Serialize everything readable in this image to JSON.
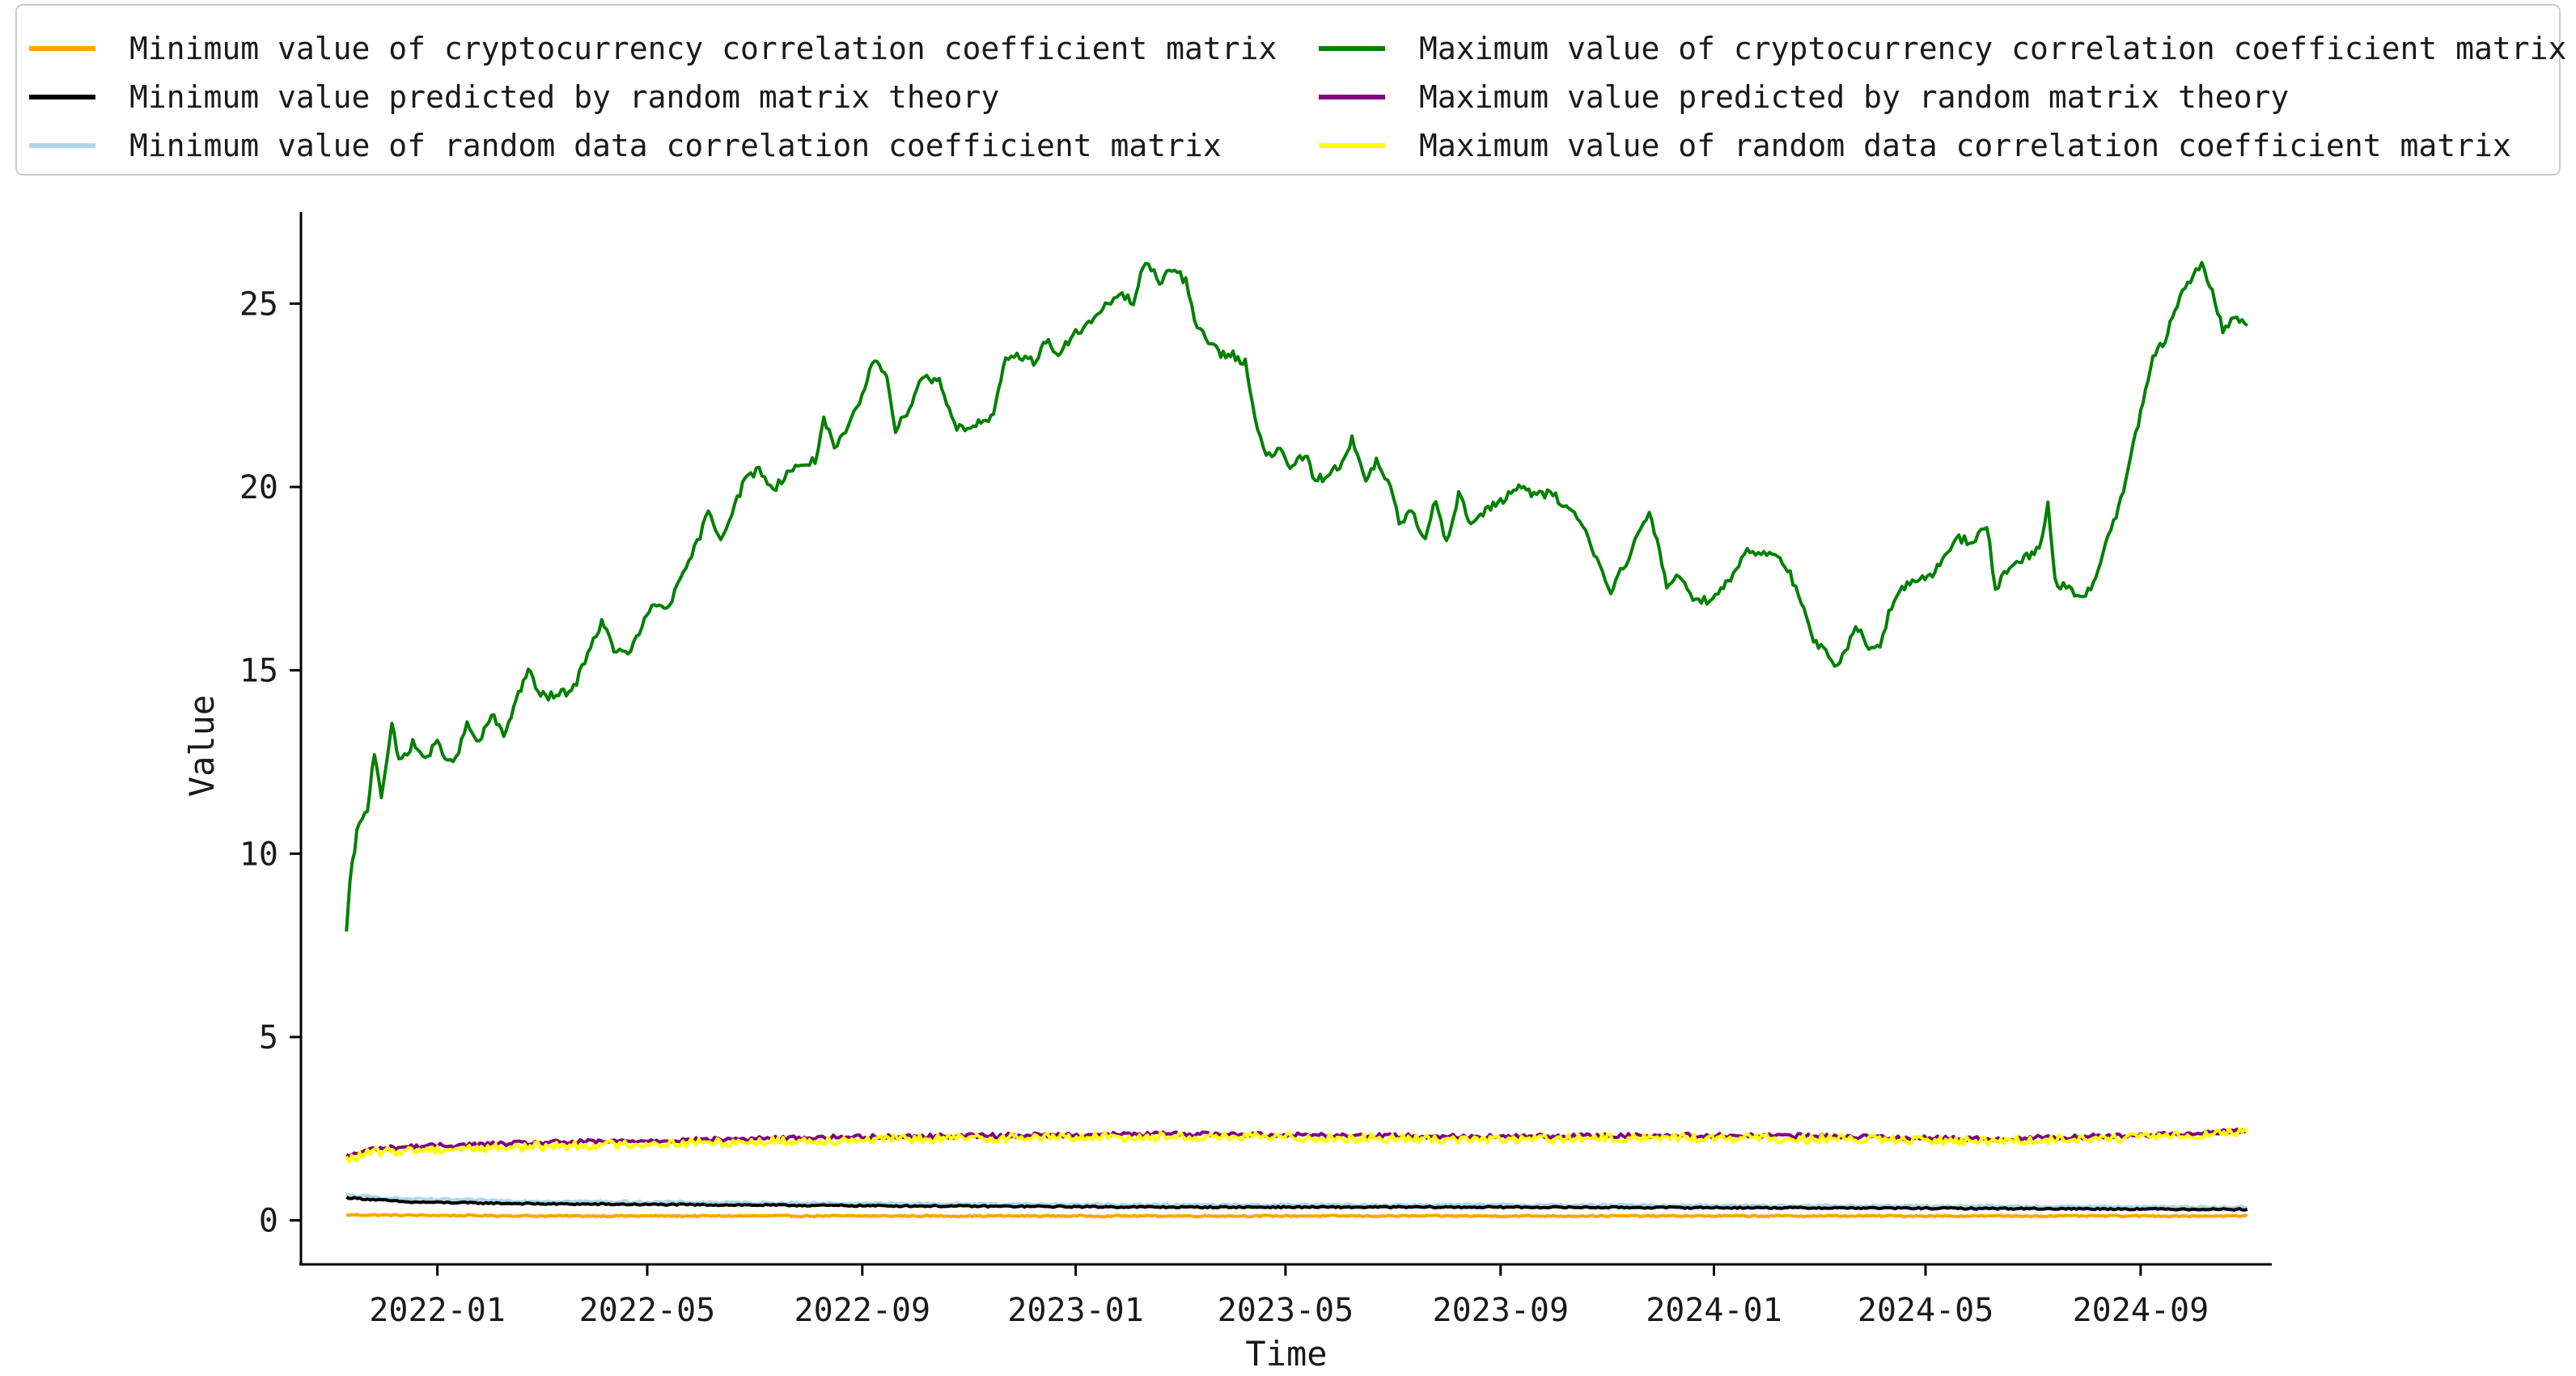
{
  "chart_data": {
    "type": "line",
    "xlabel": "Time",
    "ylabel": "Value",
    "x_range": [
      "2021-10-15",
      "2024-11-15"
    ],
    "ylim": [
      -1.2,
      27.5
    ],
    "x_ticks": [
      "2022-01",
      "2022-05",
      "2022-09",
      "2023-01",
      "2023-05",
      "2023-09",
      "2024-01",
      "2024-05",
      "2024-09"
    ],
    "y_ticks": [
      0,
      5,
      10,
      15,
      20,
      25
    ],
    "grid": false,
    "legend_position": "top",
    "legend_columns": 2,
    "series": [
      {
        "name": "Minimum value of cryptocurrency correlation coefficient matrix",
        "color": "#ffa500",
        "points": [
          [
            "2021-11-10",
            0.15
          ],
          [
            "2022-03-01",
            0.12
          ],
          [
            "2022-09-01",
            0.12
          ],
          [
            "2023-03-01",
            0.12
          ],
          [
            "2023-09-01",
            0.12
          ],
          [
            "2024-03-01",
            0.12
          ],
          [
            "2024-11-01",
            0.12
          ]
        ]
      },
      {
        "name": "Minimum value predicted by random matrix theory",
        "color": "#000000",
        "points": [
          [
            "2021-11-10",
            0.62
          ],
          [
            "2021-12-15",
            0.5
          ],
          [
            "2022-03-01",
            0.45
          ],
          [
            "2022-09-01",
            0.4
          ],
          [
            "2023-03-01",
            0.36
          ],
          [
            "2023-09-01",
            0.36
          ],
          [
            "2024-03-01",
            0.34
          ],
          [
            "2024-11-01",
            0.3
          ]
        ]
      },
      {
        "name": "Minimum value of random data correlation coefficient matrix",
        "color": "#add8e6",
        "points": [
          [
            "2021-11-10",
            0.68
          ],
          [
            "2021-12-15",
            0.58
          ],
          [
            "2022-03-01",
            0.52
          ],
          [
            "2022-09-01",
            0.46
          ],
          [
            "2023-03-01",
            0.42
          ],
          [
            "2023-09-01",
            0.42
          ],
          [
            "2024-03-01",
            0.4
          ],
          [
            "2024-11-01",
            0.36
          ]
        ]
      },
      {
        "name": "Maximum value of cryptocurrency correlation coefficient matrix",
        "color": "#008000",
        "points": [
          [
            "2021-11-10",
            7.8
          ],
          [
            "2021-11-12",
            9.2
          ],
          [
            "2021-11-16",
            10.6
          ],
          [
            "2021-11-22",
            11.2
          ],
          [
            "2021-11-26",
            12.8
          ],
          [
            "2021-11-30",
            11.6
          ],
          [
            "2021-12-06",
            13.5
          ],
          [
            "2021-12-10",
            12.5
          ],
          [
            "2021-12-18",
            13.0
          ],
          [
            "2021-12-25",
            12.6
          ],
          [
            "2022-01-01",
            13.0
          ],
          [
            "2022-01-10",
            12.4
          ],
          [
            "2022-01-18",
            13.5
          ],
          [
            "2022-01-25",
            13.0
          ],
          [
            "2022-02-01",
            13.8
          ],
          [
            "2022-02-08",
            13.2
          ],
          [
            "2022-02-15",
            14.2
          ],
          [
            "2022-02-22",
            15.0
          ],
          [
            "2022-03-01",
            14.3
          ],
          [
            "2022-03-10",
            14.3
          ],
          [
            "2022-03-20",
            14.5
          ],
          [
            "2022-03-28",
            15.5
          ],
          [
            "2022-04-05",
            16.3
          ],
          [
            "2022-04-12",
            15.6
          ],
          [
            "2022-04-20",
            15.4
          ],
          [
            "2022-04-28",
            16.2
          ],
          [
            "2022-05-05",
            16.8
          ],
          [
            "2022-05-12",
            16.7
          ],
          [
            "2022-05-20",
            17.4
          ],
          [
            "2022-05-28",
            18.3
          ],
          [
            "2022-06-05",
            19.3
          ],
          [
            "2022-06-12",
            18.6
          ],
          [
            "2022-06-20",
            19.5
          ],
          [
            "2022-06-26",
            20.2
          ],
          [
            "2022-07-04",
            20.5
          ],
          [
            "2022-07-12",
            19.9
          ],
          [
            "2022-07-20",
            20.4
          ],
          [
            "2022-07-28",
            20.6
          ],
          [
            "2022-08-05",
            20.7
          ],
          [
            "2022-08-10",
            21.9
          ],
          [
            "2022-08-16",
            21.0
          ],
          [
            "2022-08-24",
            21.6
          ],
          [
            "2022-09-01",
            22.5
          ],
          [
            "2022-09-08",
            23.5
          ],
          [
            "2022-09-15",
            23.1
          ],
          [
            "2022-09-20",
            21.5
          ],
          [
            "2022-09-28",
            22.2
          ],
          [
            "2022-10-05",
            23.0
          ],
          [
            "2022-10-15",
            22.9
          ],
          [
            "2022-10-25",
            21.6
          ],
          [
            "2022-11-05",
            21.7
          ],
          [
            "2022-11-15",
            21.9
          ],
          [
            "2022-11-22",
            23.5
          ],
          [
            "2022-11-30",
            23.6
          ],
          [
            "2022-12-08",
            23.4
          ],
          [
            "2022-12-15",
            24.0
          ],
          [
            "2022-12-22",
            23.6
          ],
          [
            "2023-01-01",
            24.2
          ],
          [
            "2023-01-10",
            24.5
          ],
          [
            "2023-01-18",
            24.9
          ],
          [
            "2023-01-26",
            25.3
          ],
          [
            "2023-02-03",
            25.0
          ],
          [
            "2023-02-10",
            26.2
          ],
          [
            "2023-02-18",
            25.6
          ],
          [
            "2023-02-25",
            26.0
          ],
          [
            "2023-03-05",
            25.6
          ],
          [
            "2023-03-10",
            24.5
          ],
          [
            "2023-03-18",
            24.0
          ],
          [
            "2023-03-25",
            23.6
          ],
          [
            "2023-04-01",
            23.6
          ],
          [
            "2023-04-08",
            23.4
          ],
          [
            "2023-04-15",
            21.6
          ],
          [
            "2023-04-20",
            20.8
          ],
          [
            "2023-04-28",
            21.0
          ],
          [
            "2023-05-05",
            20.5
          ],
          [
            "2023-05-12",
            20.9
          ],
          [
            "2023-05-18",
            20.2
          ],
          [
            "2023-05-25",
            20.3
          ],
          [
            "2023-06-01",
            20.6
          ],
          [
            "2023-06-08",
            21.3
          ],
          [
            "2023-06-16",
            20.1
          ],
          [
            "2023-06-22",
            20.7
          ],
          [
            "2023-06-30",
            20.0
          ],
          [
            "2023-07-05",
            19.0
          ],
          [
            "2023-07-12",
            19.3
          ],
          [
            "2023-07-20",
            18.6
          ],
          [
            "2023-07-26",
            19.7
          ],
          [
            "2023-08-01",
            18.5
          ],
          [
            "2023-08-08",
            19.8
          ],
          [
            "2023-08-15",
            19.0
          ],
          [
            "2023-08-22",
            19.3
          ],
          [
            "2023-09-01",
            19.6
          ],
          [
            "2023-09-10",
            20.0
          ],
          [
            "2023-09-20",
            19.8
          ],
          [
            "2023-10-01",
            19.8
          ],
          [
            "2023-10-10",
            19.4
          ],
          [
            "2023-10-18",
            19.0
          ],
          [
            "2023-10-26",
            18.0
          ],
          [
            "2023-11-03",
            17.2
          ],
          [
            "2023-11-10",
            17.8
          ],
          [
            "2023-11-15",
            18.3
          ],
          [
            "2023-11-20",
            18.8
          ],
          [
            "2023-11-25",
            19.3
          ],
          [
            "2023-12-01",
            18.2
          ],
          [
            "2023-12-05",
            17.3
          ],
          [
            "2023-12-12",
            17.6
          ],
          [
            "2023-12-20",
            17.0
          ],
          [
            "2023-12-28",
            16.9
          ],
          [
            "2024-01-05",
            17.2
          ],
          [
            "2024-01-12",
            17.6
          ],
          [
            "2024-01-20",
            18.3
          ],
          [
            "2024-01-28",
            18.2
          ],
          [
            "2024-02-05",
            18.2
          ],
          [
            "2024-02-12",
            17.8
          ],
          [
            "2024-02-20",
            16.8
          ],
          [
            "2024-02-27",
            15.8
          ],
          [
            "2024-03-05",
            15.5
          ],
          [
            "2024-03-10",
            15.0
          ],
          [
            "2024-03-16",
            15.5
          ],
          [
            "2024-03-22",
            16.3
          ],
          [
            "2024-03-28",
            15.7
          ],
          [
            "2024-04-05",
            15.6
          ],
          [
            "2024-04-10",
            16.6
          ],
          [
            "2024-04-16",
            17.2
          ],
          [
            "2024-04-25",
            17.4
          ],
          [
            "2024-05-05",
            17.6
          ],
          [
            "2024-05-12",
            18.2
          ],
          [
            "2024-05-20",
            18.6
          ],
          [
            "2024-05-28",
            18.5
          ],
          [
            "2024-06-05",
            19.0
          ],
          [
            "2024-06-10",
            17.2
          ],
          [
            "2024-06-15",
            17.6
          ],
          [
            "2024-06-25",
            18.0
          ],
          [
            "2024-07-05",
            18.3
          ],
          [
            "2024-07-10",
            19.5
          ],
          [
            "2024-07-14",
            17.4
          ],
          [
            "2024-07-22",
            17.2
          ],
          [
            "2024-07-30",
            17.0
          ],
          [
            "2024-08-05",
            17.3
          ],
          [
            "2024-08-12",
            18.5
          ],
          [
            "2024-08-18",
            19.2
          ],
          [
            "2024-08-25",
            20.5
          ],
          [
            "2024-09-01",
            22.0
          ],
          [
            "2024-09-08",
            23.5
          ],
          [
            "2024-09-15",
            24.0
          ],
          [
            "2024-09-22",
            25.0
          ],
          [
            "2024-10-01",
            25.8
          ],
          [
            "2024-10-06",
            26.1
          ],
          [
            "2024-10-12",
            25.3
          ],
          [
            "2024-10-18",
            24.3
          ],
          [
            "2024-10-26",
            24.6
          ],
          [
            "2024-11-01",
            24.4
          ]
        ]
      },
      {
        "name": "Maximum value predicted by random matrix theory",
        "color": "#800080",
        "points": [
          [
            "2021-11-10",
            1.75
          ],
          [
            "2021-11-25",
            1.95
          ],
          [
            "2021-12-20",
            2.02
          ],
          [
            "2022-03-01",
            2.12
          ],
          [
            "2022-06-01",
            2.2
          ],
          [
            "2022-09-01",
            2.28
          ],
          [
            "2022-12-01",
            2.32
          ],
          [
            "2023-03-01",
            2.36
          ],
          [
            "2023-06-01",
            2.32
          ],
          [
            "2023-09-01",
            2.28
          ],
          [
            "2023-12-01",
            2.32
          ],
          [
            "2024-03-01",
            2.3
          ],
          [
            "2024-06-01",
            2.22
          ],
          [
            "2024-09-01",
            2.32
          ],
          [
            "2024-11-01",
            2.45
          ]
        ]
      },
      {
        "name": "Maximum value of random data correlation coefficient matrix",
        "color": "#ffff00",
        "points": [
          [
            "2021-11-10",
            1.65
          ],
          [
            "2021-11-25",
            1.85
          ],
          [
            "2021-12-20",
            1.92
          ],
          [
            "2022-03-01",
            2.02
          ],
          [
            "2022-06-01",
            2.12
          ],
          [
            "2022-09-01",
            2.2
          ],
          [
            "2022-12-01",
            2.26
          ],
          [
            "2023-03-01",
            2.28
          ],
          [
            "2023-06-01",
            2.25
          ],
          [
            "2023-09-01",
            2.2
          ],
          [
            "2023-12-01",
            2.26
          ],
          [
            "2024-03-01",
            2.22
          ],
          [
            "2024-06-01",
            2.16
          ],
          [
            "2024-09-01",
            2.26
          ],
          [
            "2024-11-01",
            2.4
          ]
        ]
      }
    ]
  }
}
